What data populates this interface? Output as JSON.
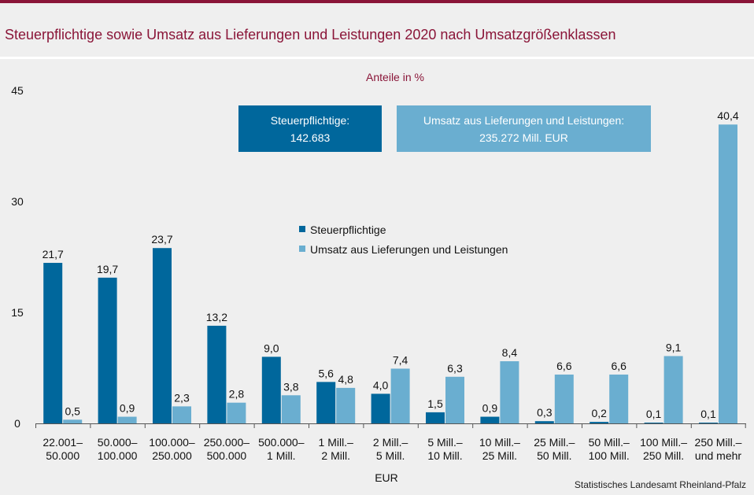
{
  "title": "Steuerpflichtige sowie Umsatz aus Lieferungen und Leistungen 2020 nach Umsatzgrößenklassen",
  "source": "Statistisches Landesamt Rheinland-Pfalz",
  "info_boxes": {
    "taxpayers": {
      "label": "Steuerpflichtige:",
      "value": "142.683"
    },
    "turnover": {
      "label": "Umsatz aus Lieferungen und Leistungen:",
      "value": "235.272 Mill. EUR"
    }
  },
  "colors": {
    "accent": "#8a1538",
    "taxpayers": "#00679c",
    "turnover": "#6aaed0",
    "background": "#efefef"
  },
  "chart_data": {
    "type": "bar",
    "title": "Steuerpflichtige sowie Umsatz aus Lieferungen und Leistungen 2020 nach Umsatzgrößenklassen",
    "subtitle": "Anteile in %",
    "xlabel": "EUR",
    "ylabel": "",
    "ylim": [
      0,
      45
    ],
    "yticks": [
      "0",
      "15",
      "30",
      "45"
    ],
    "grid": false,
    "legend": "center",
    "categories": [
      [
        "22.001–",
        "50.000"
      ],
      [
        "50.000–",
        "100.000"
      ],
      [
        "100.000–",
        "250.000"
      ],
      [
        "250.000–",
        "500.000"
      ],
      [
        "500.000–",
        "1 Mill."
      ],
      [
        "1 Mill.–",
        "2 Mill."
      ],
      [
        "2 Mill.–",
        "5 Mill."
      ],
      [
        "5 Mill.–",
        "10 Mill."
      ],
      [
        "10 Mill.–",
        "25 Mill."
      ],
      [
        "25 Mill.–",
        "50 Mill."
      ],
      [
        "50 Mill.–",
        "100 Mill."
      ],
      [
        "100 Mill.–",
        "250 Mill."
      ],
      [
        "250 Mill.–",
        "und mehr"
      ]
    ],
    "series": [
      {
        "name": "Steuerpflichtige",
        "values": [
          21.7,
          19.7,
          23.7,
          13.2,
          9.0,
          5.6,
          4.0,
          1.5,
          0.9,
          0.3,
          0.2,
          0.1,
          0.1
        ],
        "labels": [
          "21,7",
          "19,7",
          "23,7",
          "13,2",
          "9,0",
          "5,6",
          "4,0",
          "1,5",
          "0,9",
          "0,3",
          "0,2",
          "0,1",
          "0,1"
        ]
      },
      {
        "name": "Umsatz aus Lieferungen und Leistungen",
        "values": [
          0.5,
          0.9,
          2.3,
          2.8,
          3.8,
          4.8,
          7.4,
          6.3,
          8.4,
          6.6,
          6.6,
          9.1,
          40.4
        ],
        "labels": [
          "0,5",
          "0,9",
          "2,3",
          "2,8",
          "3,8",
          "4,8",
          "7,4",
          "6,3",
          "8,4",
          "6,6",
          "6,6",
          "9,1",
          "40,4"
        ]
      }
    ]
  }
}
